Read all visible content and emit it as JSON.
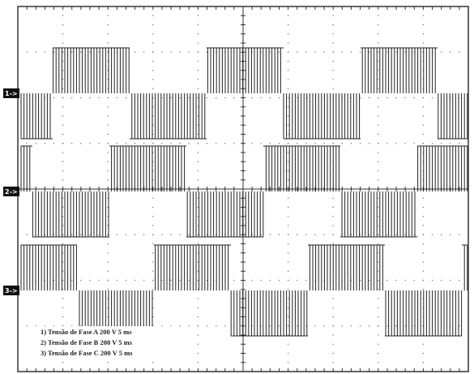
{
  "channel_markers": [
    "1->",
    "2->",
    "3->"
  ],
  "legend": [
    "1) Tensão de Fase A  200 V   5 ms",
    "2) Tensão de Fase B  200 V   5 ms",
    "3) Tensão de Fase C  200 V   5 ms"
  ]
}
